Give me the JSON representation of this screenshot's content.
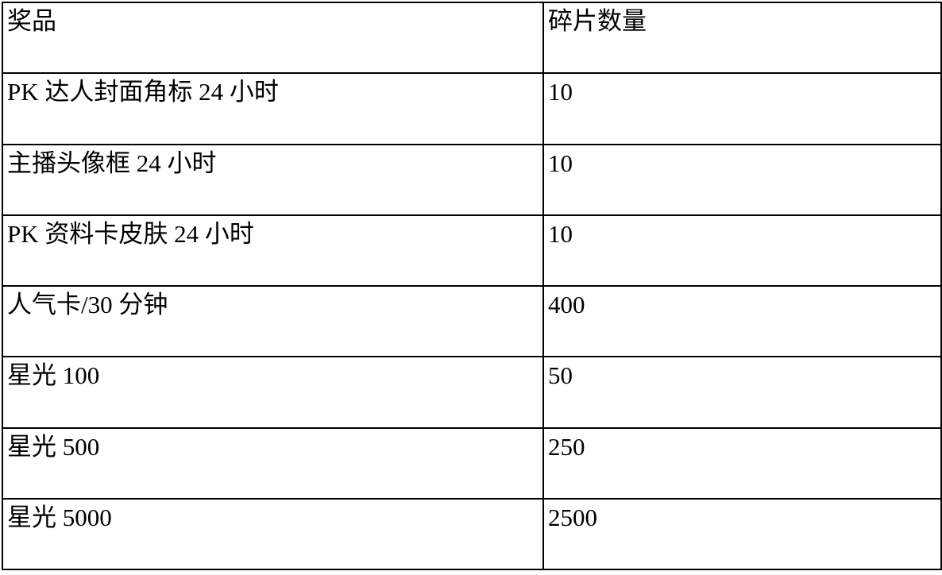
{
  "table": {
    "columns": {
      "prize": "奖品",
      "count": "碎片数量"
    },
    "rows": [
      {
        "prize": "PK 达人封面角标 24 小时",
        "count": "10"
      },
      {
        "prize": "主播头像框 24 小时",
        "count": "10"
      },
      {
        "prize": "PK 资料卡皮肤 24 小时",
        "count": "10"
      },
      {
        "prize": "人气卡/30 分钟",
        "count": "400"
      },
      {
        "prize": "星光 100",
        "count": "50"
      },
      {
        "prize": "星光 500",
        "count": "250"
      },
      {
        "prize": "星光 5000",
        "count": "2500"
      }
    ]
  }
}
